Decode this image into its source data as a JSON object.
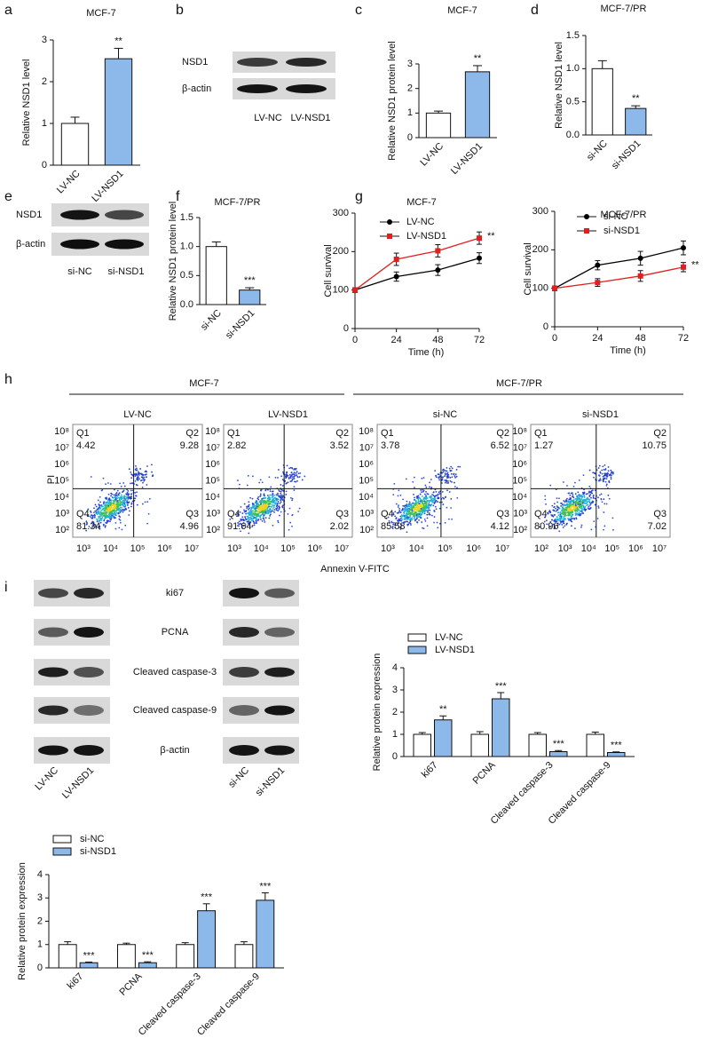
{
  "panel_labels": [
    "a",
    "b",
    "c",
    "d",
    "e",
    "f",
    "g",
    "h",
    "i"
  ],
  "chart_data": [
    {
      "type": "bar",
      "title": "MCF-7",
      "ylabel": "Relative NSD1 level",
      "categories": [
        "LV-NC",
        "LV-NSD1"
      ],
      "values": [
        1,
        2.55
      ],
      "errors": [
        0.15,
        0.25
      ],
      "colors": [
        "#ffffff",
        "#8db8ea"
      ],
      "annotation": "**",
      "ylim": [
        0,
        3
      ],
      "yticks": [
        0,
        1,
        2,
        3
      ]
    },
    {
      "type": "bar",
      "title": "MCF-7",
      "ylabel": "Relative NSD1 protein level",
      "categories": [
        "LV-NC",
        "LV-NSD1"
      ],
      "values": [
        1,
        2.68
      ],
      "errors": [
        0.08,
        0.25
      ],
      "colors": [
        "#ffffff",
        "#8db8ea"
      ],
      "annotation": "**",
      "ylim": [
        0,
        3
      ],
      "yticks": [
        0,
        1,
        2,
        3
      ]
    },
    {
      "type": "bar",
      "title": "MCF-7/PR",
      "ylabel": "Relative NSD1 level",
      "categories": [
        "si-NC",
        "si-NSD1"
      ],
      "values": [
        1,
        0.4
      ],
      "errors": [
        0.12,
        0.04
      ],
      "colors": [
        "#ffffff",
        "#8db8ea"
      ],
      "annotation": "**",
      "ylim": [
        0,
        1.5
      ],
      "yticks": [
        {
          "value": 0,
          "label": "0.0"
        },
        0.5,
        {
          "value": 1,
          "label": "1.0"
        },
        1.5
      ]
    },
    {
      "type": "bar",
      "title": "MCF-7/PR",
      "ylabel": "Relative NSD1 protein level",
      "categories": [
        "si-NC",
        "si-NSD1"
      ],
      "values": [
        1,
        0.25
      ],
      "errors": [
        0.08,
        0.04
      ],
      "colors": [
        "#ffffff",
        "#8db8ea"
      ],
      "annotation": "***",
      "ylim": [
        0,
        1.5
      ],
      "yticks": [
        {
          "value": 0,
          "label": "0.0"
        },
        0.5,
        {
          "value": 1,
          "label": "1.0"
        },
        1.5
      ]
    },
    {
      "type": "line",
      "title": "MCF-7",
      "xlabel": "Time (h)",
      "ylabel": "Cell survival",
      "x": [
        0,
        24,
        48,
        72
      ],
      "series": [
        {
          "name": "LV-NC",
          "color": "#000000",
          "values": [
            100,
            135,
            152,
            183
          ],
          "errors": [
            6,
            12,
            14,
            14
          ]
        },
        {
          "name": "LV-NSD1",
          "color": "#e02020",
          "values": [
            100,
            180,
            202,
            235
          ],
          "errors": [
            6,
            16,
            16,
            16
          ]
        }
      ],
      "annotation": "**",
      "xlim": [
        0,
        72
      ],
      "xticks": [
        0,
        24,
        48,
        72
      ],
      "ylim": [
        0,
        300
      ],
      "yticks": [
        0,
        100,
        200,
        300
      ]
    },
    {
      "type": "line",
      "title": "MCF-7/PR",
      "xlabel": "Time (h)",
      "ylabel": "Cell survival",
      "x": [
        0,
        24,
        48,
        72
      ],
      "series": [
        {
          "name": "si-NC",
          "color": "#000000",
          "values": [
            100,
            160,
            178,
            205
          ],
          "errors": [
            6,
            12,
            18,
            18
          ]
        },
        {
          "name": "si-NSD1",
          "color": "#e02020",
          "values": [
            100,
            115,
            132,
            155
          ],
          "errors": [
            6,
            10,
            14,
            12
          ]
        }
      ],
      "annotation": "**",
      "xlim": [
        0,
        72
      ],
      "xticks": [
        0,
        24,
        48,
        72
      ],
      "ylim": [
        0,
        300
      ],
      "yticks": [
        0,
        100,
        200,
        300
      ]
    },
    {
      "type": "bar",
      "ylabel": "Relative protein expression",
      "categories": [
        "ki67",
        "PCNA",
        "Cleaved caspase-3",
        "Cleaved caspase-9"
      ],
      "series": [
        {
          "name": "LV-NC",
          "color": "#ffffff",
          "values": [
            1,
            1,
            1,
            1
          ],
          "errors": [
            0.08,
            0.12,
            0.08,
            0.1
          ]
        },
        {
          "name": "LV-NSD1",
          "color": "#8db8ea",
          "values": [
            1.65,
            2.6,
            0.22,
            0.18
          ],
          "errors": [
            0.18,
            0.28,
            0.05,
            0.03
          ],
          "annotations": [
            "**",
            "***",
            "***",
            "***"
          ]
        }
      ],
      "ylim": [
        0,
        4
      ],
      "yticks": [
        0,
        1,
        2,
        3,
        4
      ]
    },
    {
      "type": "bar",
      "ylabel": "Relative protein expression",
      "categories": [
        "ki67",
        "PCNA",
        "Cleaved caspase-3",
        "Cleaved caspase-9"
      ],
      "series": [
        {
          "name": "si-NC",
          "color": "#ffffff",
          "values": [
            1,
            1,
            1,
            1
          ],
          "errors": [
            0.12,
            0.06,
            0.08,
            0.12
          ]
        },
        {
          "name": "si-NSD1",
          "color": "#8db8ea",
          "values": [
            0.22,
            0.22,
            2.45,
            2.9
          ],
          "errors": [
            0.03,
            0.04,
            0.3,
            0.32
          ],
          "annotations": [
            "***",
            "***",
            "***",
            "***"
          ]
        }
      ],
      "ylim": [
        0,
        4
      ],
      "yticks": [
        0,
        1,
        2,
        3,
        4
      ]
    }
  ],
  "blots": [
    {
      "rows": [
        "NSD1",
        "β-actin"
      ],
      "lanes": [
        "LV-NC",
        "LV-NSD1"
      ]
    },
    {
      "rows": [
        "NSD1",
        "β-actin"
      ],
      "lanes": [
        "si-NC",
        "si-NSD1"
      ]
    },
    {
      "rows": [
        "ki67",
        "PCNA",
        "Cleaved caspase-3",
        "Cleaved caspase-9",
        "β-actin"
      ],
      "lanes_left": [
        "LV-NC",
        "LV-NSD1"
      ],
      "lanes_right": [
        "si-NC",
        "si-NSD1"
      ]
    }
  ],
  "flow": {
    "groups": [
      "MCF-7",
      "MCF-7/PR"
    ],
    "ylabel": "PI",
    "xlabel": "Annexin V-FITC",
    "plots": [
      {
        "title": "LV-NC",
        "xticks": [
          "10³",
          "10⁴",
          "10⁵",
          "10⁶",
          "10⁷"
        ],
        "yticks": [
          "10²",
          "10³",
          "10⁴",
          "10⁵",
          "10⁶",
          "10⁷",
          "10⁸"
        ],
        "quadrants": [
          {
            "name": "Q1",
            "value": 4.42
          },
          {
            "name": "Q2",
            "value": 9.28
          },
          {
            "name": "Q3",
            "value": 4.96
          },
          {
            "name": "Q4",
            "value": 81.34
          }
        ]
      },
      {
        "title": "LV-NSD1",
        "xticks": [
          "10³",
          "10⁴",
          "10⁵",
          "10⁶",
          "10⁷"
        ],
        "yticks": [
          "10²",
          "10³",
          "10⁴",
          "10⁵",
          "10⁶",
          "10⁷",
          "10⁸"
        ],
        "quadrants": [
          {
            "name": "Q1",
            "value": 2.82
          },
          {
            "name": "Q2",
            "value": 3.52
          },
          {
            "name": "Q3",
            "value": 2.02
          },
          {
            "name": "Q4",
            "value": 91.64
          }
        ]
      },
      {
        "title": "si-NC",
        "xticks": [
          "10³",
          "10⁴",
          "10⁵",
          "10⁶",
          "10⁷"
        ],
        "yticks": [
          "10²",
          "10³",
          "10⁴",
          "10⁵",
          "10⁶",
          "10⁷",
          "10⁸"
        ],
        "quadrants": [
          {
            "name": "Q1",
            "value": 3.78
          },
          {
            "name": "Q2",
            "value": 6.52
          },
          {
            "name": "Q3",
            "value": 4.12
          },
          {
            "name": "Q4",
            "value": 85.58
          }
        ]
      },
      {
        "title": "si-NSD1",
        "xticks": [
          "10²",
          "10³",
          "10⁴",
          "10⁵",
          "10⁶",
          "10⁷"
        ],
        "yticks": [
          "10²",
          "10³",
          "10⁴",
          "10⁵",
          "10⁶",
          "10⁷",
          "10⁸"
        ],
        "quadrants": [
          {
            "name": "Q1",
            "value": 1.27
          },
          {
            "name": "Q2",
            "value": 10.75
          },
          {
            "name": "Q3",
            "value": 7.02
          },
          {
            "name": "Q4",
            "value": 80.96
          }
        ]
      }
    ]
  }
}
